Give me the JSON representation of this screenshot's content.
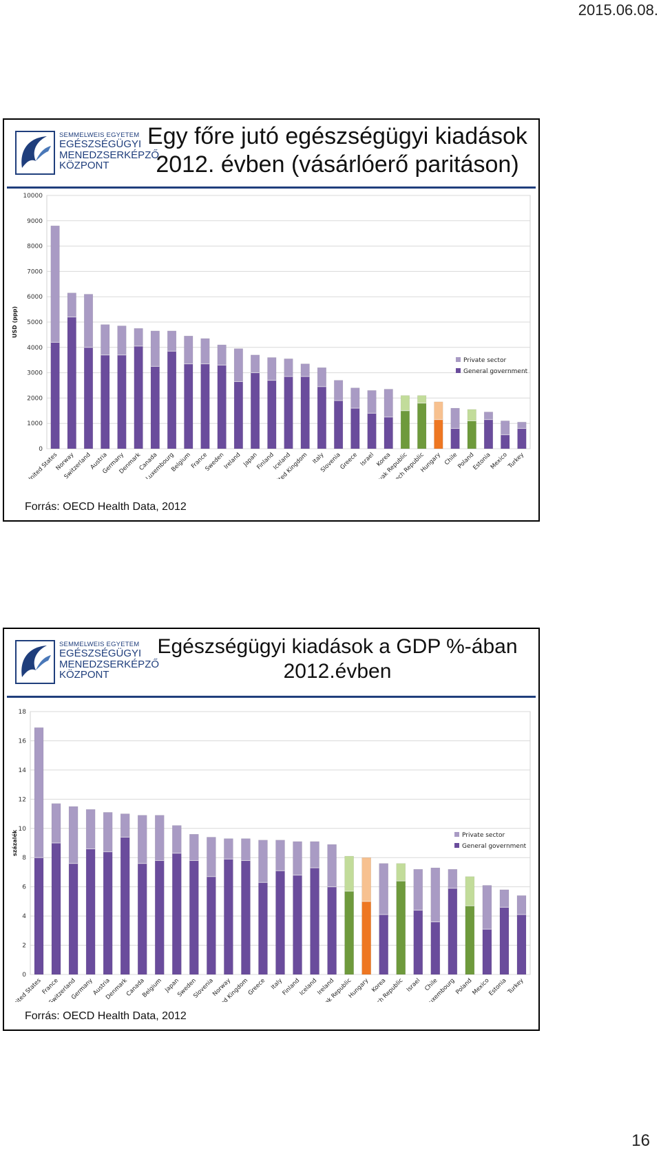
{
  "page": {
    "date": "2015.06.08.",
    "number": "16"
  },
  "colors": {
    "general": "#6a4c9c",
    "private": "#a99bc4",
    "general_green": "#6e9a3c",
    "private_green": "#c2dc9a",
    "general_orange": "#ee7722",
    "private_orange": "#f7c190"
  },
  "logo": {
    "line1": "SEMMELWEIS EGYETEM",
    "line2": "EGÉSZSÉGÜGYI",
    "line3": "MENEDZSERKÉPZŐ",
    "line4": "KÖZPONT"
  },
  "slides": [
    {
      "title_line1": "Egy főre jutó egészségügyi kiadások",
      "title_line2": "2012. évben (vásárlóerő paritáson)",
      "source": "Forrás: OECD Health Data, 2012"
    },
    {
      "title_line1": "Egészségügyi kiadások a GDP %-ában",
      "title_line2": "2012.évben",
      "source": "Forrás: OECD Health Data, 2012"
    }
  ],
  "chart_data": [
    {
      "type": "bar",
      "stacked": true,
      "ylabel": "USD (ppp)",
      "ylim": [
        0,
        10000
      ],
      "yticks": [
        0,
        1000,
        2000,
        3000,
        4000,
        5000,
        6000,
        7000,
        8000,
        9000,
        10000
      ],
      "grid": true,
      "legend_position": "right",
      "categories": [
        "United States",
        "Norway",
        "Switzerland",
        "Austria",
        "Germany",
        "Denmark",
        "Canada",
        "Luxembourg",
        "Belgium",
        "France",
        "Sweden",
        "Ireland",
        "Japan",
        "Finland",
        "Iceland",
        "United Kingdom",
        "Italy",
        "Slovenia",
        "Greece",
        "Israel",
        "Korea",
        "Slovak Republic",
        "Czech Republic",
        "Hungary",
        "Chile",
        "Poland",
        "Estonia",
        "Mexico",
        "Turkey"
      ],
      "highlight": {
        "Slovak Republic": "green",
        "Czech Republic": "green",
        "Poland": "green",
        "Hungary": "orange"
      },
      "series": [
        {
          "name": "Private sector",
          "values": [
            4600,
            950,
            2100,
            1200,
            1150,
            700,
            1400,
            800,
            1100,
            1000,
            800,
            1300,
            700,
            900,
            700,
            500,
            750,
            800,
            800,
            900,
            1100,
            600,
            300,
            700,
            800,
            450,
            300,
            550,
            250
          ]
        },
        {
          "name": "General government",
          "values": [
            4200,
            5200,
            4000,
            3700,
            3700,
            4050,
            3250,
            3850,
            3350,
            3350,
            3300,
            2650,
            3000,
            2700,
            2850,
            2850,
            2450,
            1900,
            1600,
            1400,
            1250,
            1500,
            1800,
            1150,
            800,
            1100,
            1150,
            550,
            800
          ]
        }
      ]
    },
    {
      "type": "bar",
      "stacked": true,
      "ylabel": "százalék",
      "ylim": [
        0,
        18
      ],
      "yticks": [
        0,
        2,
        4,
        6,
        8,
        10,
        12,
        14,
        16,
        18
      ],
      "grid": true,
      "legend_position": "right",
      "categories": [
        "United States",
        "France",
        "Switzerland",
        "Germany",
        "Austria",
        "Denmark",
        "Canada",
        "Belgium",
        "Japan",
        "Sweden",
        "Slovenia",
        "Norway",
        "United Kingdom",
        "Greece",
        "Italy",
        "Finland",
        "Iceland",
        "Ireland",
        "Slovak Republic",
        "Hungary",
        "Korea",
        "Czech Republic",
        "Israel",
        "Chile",
        "Luxembourg",
        "Poland",
        "Mexico",
        "Estonia",
        "Turkey"
      ],
      "highlight": {
        "Slovak Republic": "green",
        "Czech Republic": "green",
        "Poland": "green",
        "Hungary": "orange"
      },
      "series": [
        {
          "name": "Private sector",
          "values": [
            8.9,
            2.7,
            3.9,
            2.7,
            2.7,
            1.6,
            3.3,
            3.1,
            1.9,
            1.8,
            2.7,
            1.4,
            1.5,
            2.9,
            2.1,
            2.3,
            1.8,
            2.9,
            2.4,
            3.0,
            3.5,
            1.2,
            2.8,
            3.7,
            1.3,
            2.0,
            3.0,
            1.2,
            1.3
          ]
        },
        {
          "name": "General government",
          "values": [
            8.0,
            9.0,
            7.6,
            8.6,
            8.4,
            9.4,
            7.6,
            7.8,
            8.3,
            7.8,
            6.7,
            7.9,
            7.8,
            6.3,
            7.1,
            6.8,
            7.3,
            6.0,
            5.7,
            5.0,
            4.1,
            6.4,
            4.4,
            3.6,
            5.9,
            4.7,
            3.1,
            4.6,
            4.1
          ]
        }
      ]
    }
  ]
}
